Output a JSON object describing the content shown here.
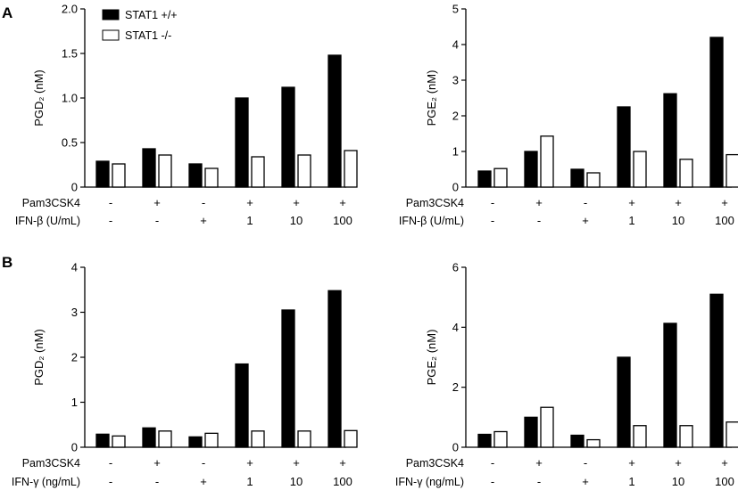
{
  "figure": {
    "panel_letters": [
      "A",
      "B"
    ],
    "legend": [
      {
        "label": "STAT1 +/+",
        "fill": "#000000"
      },
      {
        "label": "STAT1  -/-",
        "fill": "#ffffff"
      }
    ],
    "colors": {
      "wt": "#000000",
      "ko": "#ffffff",
      "outline": "#000000"
    }
  },
  "chart_data": [
    {
      "type": "bar",
      "panel": "A",
      "position": "left",
      "ylabel": "PGD₂ (nM)",
      "ylim": [
        0,
        2.0
      ],
      "yticks": [
        "0",
        "0.5",
        "1.0",
        "1.5",
        "2.0"
      ],
      "ytick_values": [
        0,
        0.5,
        1.0,
        1.5,
        2.0
      ],
      "row_labels": [
        "Pam3CSK4",
        "IFN-β (U/mL)"
      ],
      "conditions": [
        [
          "-",
          "+",
          "-",
          "+",
          "+",
          "+"
        ],
        [
          "-",
          "-",
          "+",
          "1",
          "10",
          "100"
        ]
      ],
      "series": [
        {
          "name": "STAT1 +/+",
          "values": [
            0.29,
            0.43,
            0.26,
            1.0,
            1.12,
            1.48
          ]
        },
        {
          "name": "STAT1 -/-",
          "values": [
            0.26,
            0.36,
            0.21,
            0.34,
            0.36,
            0.41
          ]
        }
      ]
    },
    {
      "type": "bar",
      "panel": "A",
      "position": "right",
      "ylabel": "PGE₂ (nM)",
      "ylim": [
        0,
        5
      ],
      "yticks": [
        "0",
        "1",
        "2",
        "3",
        "4",
        "5"
      ],
      "ytick_values": [
        0,
        1,
        2,
        3,
        4,
        5
      ],
      "row_labels": [
        "Pam3CSK4",
        "IFN-β (U/mL)"
      ],
      "conditions": [
        [
          "-",
          "+",
          "-",
          "+",
          "+",
          "+"
        ],
        [
          "-",
          "-",
          "+",
          "1",
          "10",
          "100"
        ]
      ],
      "series": [
        {
          "name": "STAT1 +/+",
          "values": [
            0.45,
            1.0,
            0.5,
            2.25,
            2.62,
            4.2
          ]
        },
        {
          "name": "STAT1 -/-",
          "values": [
            0.52,
            1.43,
            0.4,
            1.0,
            0.78,
            0.91
          ]
        }
      ]
    },
    {
      "type": "bar",
      "panel": "B",
      "position": "left",
      "ylabel": "PGD₂ (nM)",
      "ylim": [
        0,
        4
      ],
      "yticks": [
        "0",
        "1",
        "2",
        "3",
        "4"
      ],
      "ytick_values": [
        0,
        1,
        2,
        3,
        4
      ],
      "row_labels": [
        "Pam3CSK4",
        "IFN-γ (ng/mL)"
      ],
      "conditions": [
        [
          "-",
          "+",
          "-",
          "+",
          "+",
          "+"
        ],
        [
          "-",
          "-",
          "+",
          "1",
          "10",
          "100"
        ]
      ],
      "series": [
        {
          "name": "STAT1 +/+",
          "values": [
            0.29,
            0.43,
            0.23,
            1.85,
            3.05,
            3.48
          ]
        },
        {
          "name": "STAT1 -/-",
          "values": [
            0.25,
            0.36,
            0.31,
            0.36,
            0.36,
            0.37
          ]
        }
      ]
    },
    {
      "type": "bar",
      "panel": "B",
      "position": "right",
      "ylabel": "PGE₂ (nM)",
      "ylim": [
        0,
        6
      ],
      "yticks": [
        "0",
        "2",
        "4",
        "6"
      ],
      "ytick_values": [
        0,
        2,
        4,
        6
      ],
      "row_labels": [
        "Pam3CSK4",
        "IFN-γ (ng/mL)"
      ],
      "conditions": [
        [
          "-",
          "+",
          "-",
          "+",
          "+",
          "+"
        ],
        [
          "-",
          "-",
          "+",
          "1",
          "10",
          "100"
        ]
      ],
      "series": [
        {
          "name": "STAT1 +/+",
          "values": [
            0.43,
            1.0,
            0.4,
            3.0,
            4.13,
            5.1
          ]
        },
        {
          "name": "STAT1 -/-",
          "values": [
            0.52,
            1.33,
            0.25,
            0.72,
            0.72,
            0.84
          ]
        }
      ]
    }
  ]
}
